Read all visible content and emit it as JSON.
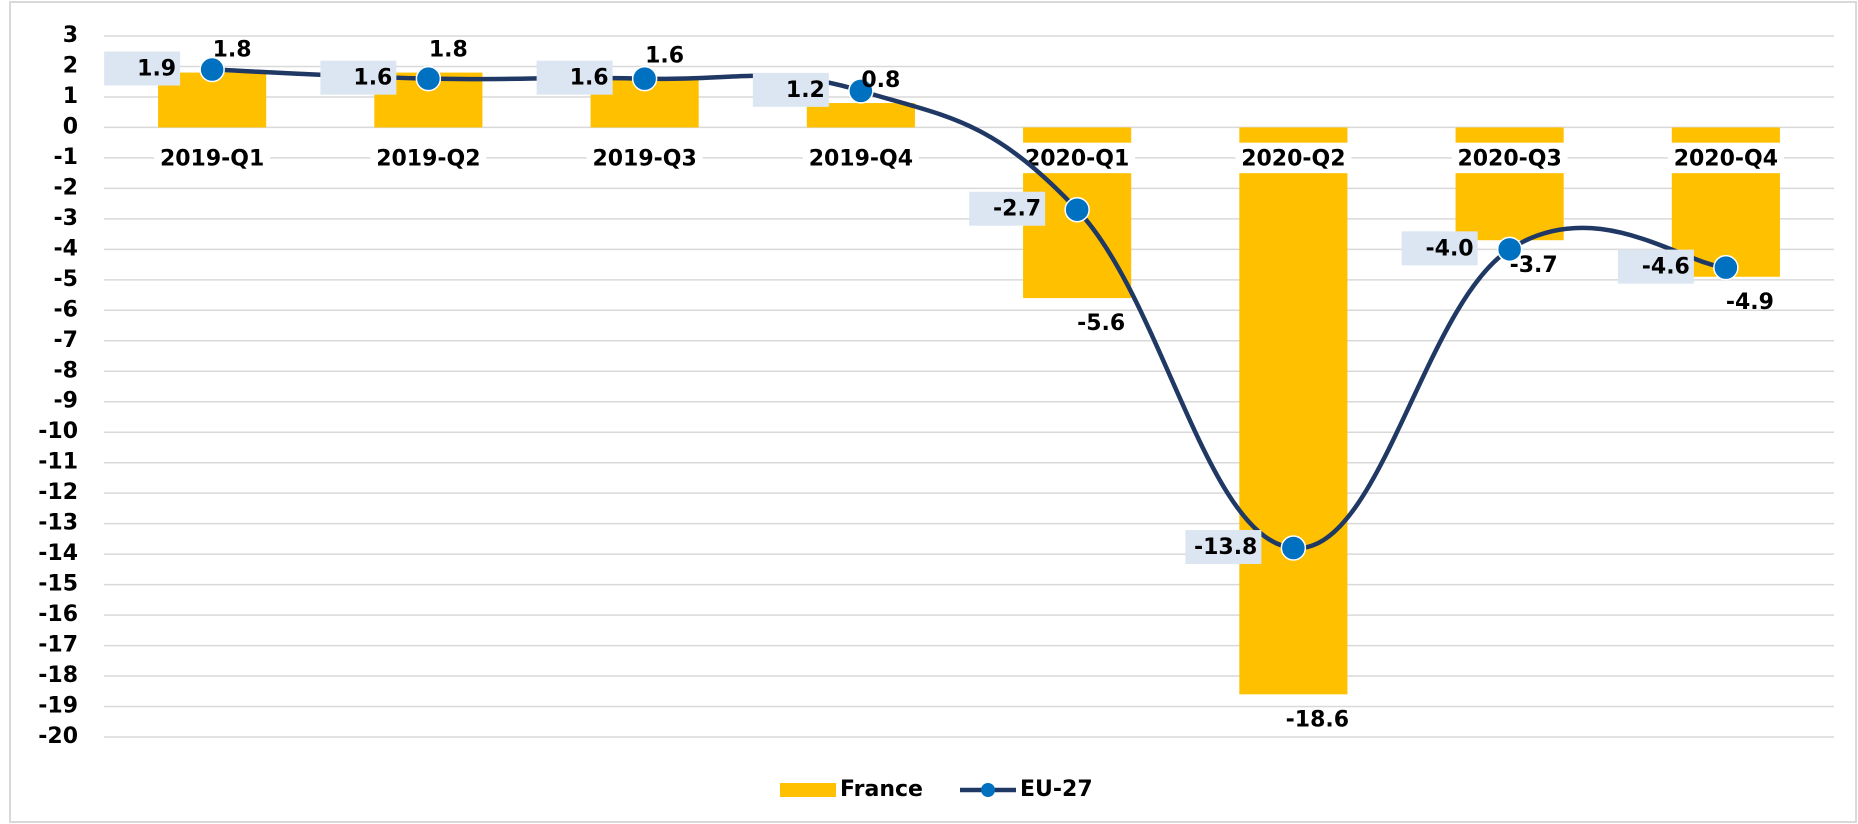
{
  "chart_data": {
    "type": "combo",
    "categories": [
      "2019-Q1",
      "2019-Q2",
      "2019-Q3",
      "2019-Q4",
      "2020-Q1",
      "2020-Q2",
      "2020-Q3",
      "2020-Q4"
    ],
    "series": [
      {
        "name": "France",
        "type": "bar",
        "color": "#ffc000",
        "values": [
          1.8,
          1.8,
          1.6,
          0.8,
          -5.6,
          -18.6,
          -3.7,
          -4.9
        ]
      },
      {
        "name": "EU-27",
        "type": "line",
        "color": "#1f3864",
        "marker_color": "#0070c0",
        "values": [
          1.9,
          1.6,
          1.6,
          1.2,
          -2.7,
          -13.8,
          -4.0,
          -4.6
        ],
        "value_labels": [
          "1.9",
          "1.6",
          "1.6",
          "1.2",
          "-2.7",
          "-13.8",
          "-4.0",
          "-4.6"
        ]
      }
    ],
    "ylim": [
      -20,
      3
    ],
    "yticks": [
      -20,
      -19,
      -18,
      -17,
      -16,
      -15,
      -14,
      -13,
      -12,
      -11,
      -10,
      -9,
      -8,
      -7,
      -6,
      -5,
      -4,
      -3,
      -2,
      -1,
      0,
      1,
      2,
      3
    ],
    "grid": true,
    "legend": "bottom"
  }
}
